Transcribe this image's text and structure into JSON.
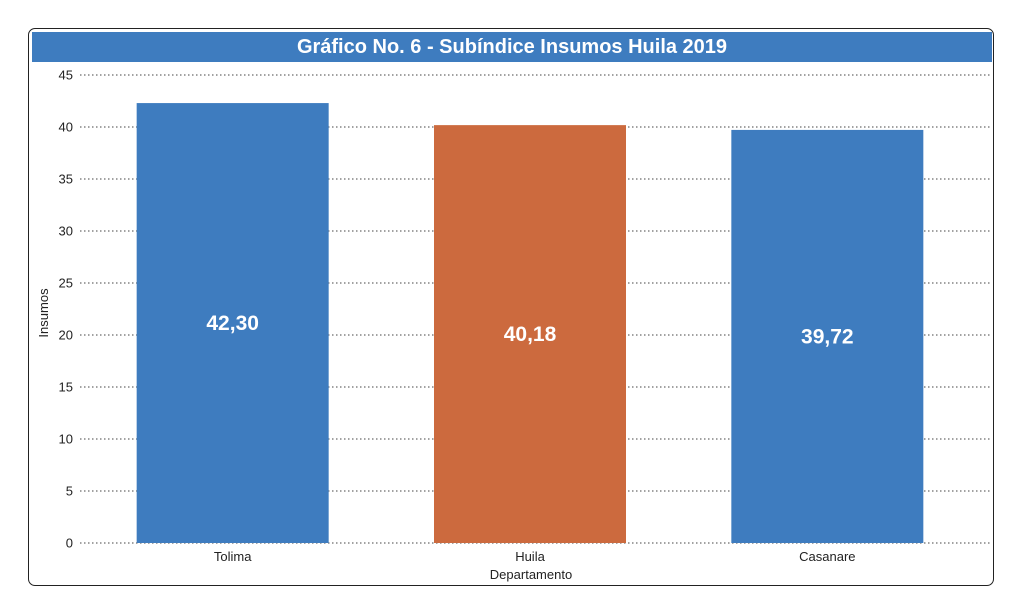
{
  "chart_data": {
    "type": "bar",
    "title": "Gráfico No. 6 - Subíndice Insumos Huila 2019",
    "xlabel": "Departamento",
    "ylabel": "Insumos",
    "categories": [
      "Tolima",
      "Huila",
      "Casanare"
    ],
    "values": [
      42.3,
      40.18,
      39.72
    ],
    "value_labels": [
      "42,30",
      "40,18",
      "39,72"
    ],
    "bar_colors": [
      "#3e7cbf",
      "#cc6a3e",
      "#3e7cbf"
    ],
    "ylim": [
      0,
      45
    ],
    "yticks": [
      0,
      5,
      10,
      15,
      20,
      25,
      30,
      35,
      40,
      45
    ],
    "grid": true,
    "grid_style": "dotted",
    "legend": "none"
  }
}
